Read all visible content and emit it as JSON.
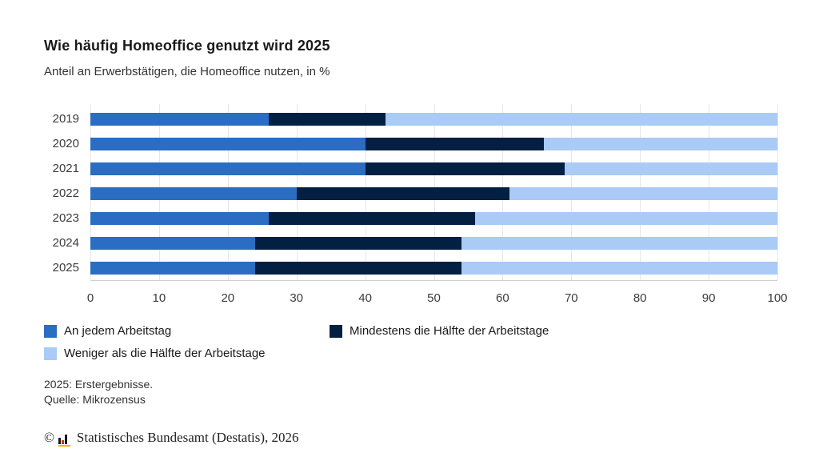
{
  "header": {
    "title": "Wie häufig Homeoffice genutzt wird 2025",
    "subtitle": "Anteil an Erwerbstätigen, die Homeoffice nutzen, in %"
  },
  "chart_data": {
    "type": "bar",
    "orientation": "horizontal",
    "stacked": true,
    "title": "Wie häufig Homeoffice genutzt wird 2025",
    "subtitle": "Anteil an Erwerbstätigen, die Homeoffice nutzen, in %",
    "categories": [
      "2019",
      "2020",
      "2021",
      "2022",
      "2023",
      "2024",
      "2025"
    ],
    "series": [
      {
        "name": "An jedem Arbeitstag",
        "color": "#2a6dc2",
        "values": [
          26,
          40,
          40,
          30,
          26,
          24,
          24
        ]
      },
      {
        "name": "Mindestens die Hälfte der Arbeitstage",
        "color": "#031f42",
        "values": [
          17,
          26,
          29,
          31,
          30,
          30,
          30
        ]
      },
      {
        "name": "Weniger als die Hälfte der Arbeitstage",
        "color": "#a9cbf6",
        "values": [
          57,
          34,
          31,
          39,
          44,
          46,
          46
        ]
      }
    ],
    "xlabel": "",
    "ylabel": "",
    "xlim": [
      0,
      100
    ],
    "x_ticks": [
      0,
      10,
      20,
      30,
      40,
      50,
      60,
      70,
      80,
      90,
      100
    ],
    "grid": true,
    "legend_position": "bottom"
  },
  "footnotes": [
    "2025: Erstergebnisse.",
    "Quelle: Mikrozensus"
  ],
  "copyright": {
    "prefix": "©",
    "text": "Statistisches Bundesamt (Destatis), 2026"
  },
  "colors": {
    "accent_blue": "#2a6dc2",
    "accent_dark": "#031f42",
    "accent_light": "#a9cbf6",
    "logo_red": "#d42b1e",
    "logo_gold": "#f0b400"
  }
}
